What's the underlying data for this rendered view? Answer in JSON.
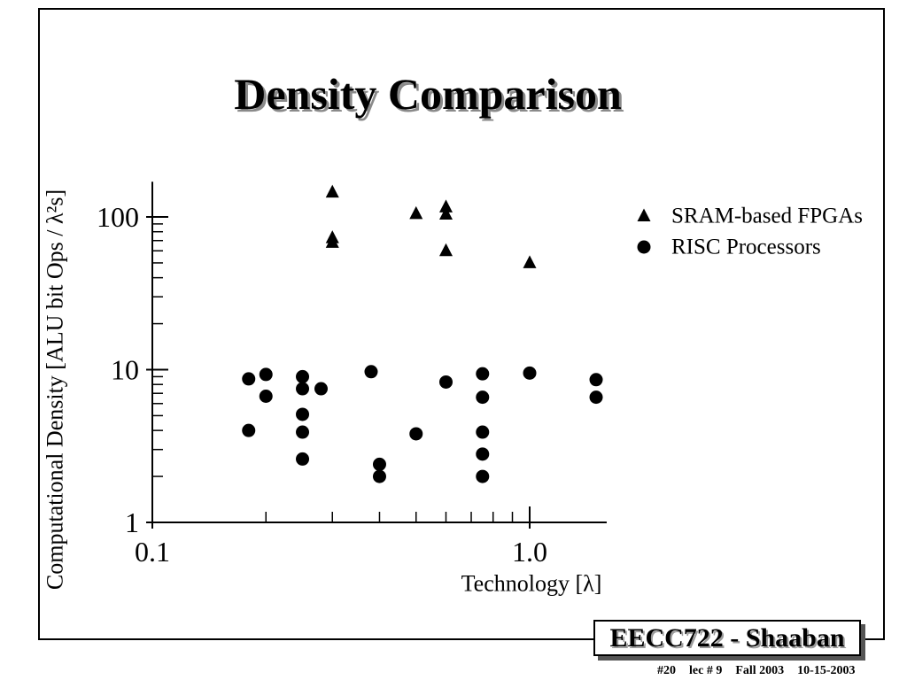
{
  "chart_data": {
    "type": "scatter",
    "title": "Density Comparison",
    "xlabel": "Technology [λ]",
    "ylabel": "Computational Density [ALU bit Ops / λ²s]",
    "x_scale": "log",
    "y_scale": "log",
    "xlim": [
      0.1,
      1.6
    ],
    "ylim": [
      1,
      170
    ],
    "x_ticks": [
      {
        "value": 0.1,
        "label": "0.1"
      },
      {
        "value": 1.0,
        "label": "1.0"
      }
    ],
    "y_ticks": [
      {
        "value": 1,
        "label": "1"
      },
      {
        "value": 10,
        "label": "10"
      },
      {
        "value": 100,
        "label": "100"
      }
    ],
    "grid": false,
    "legend_position": "top-right",
    "series": [
      {
        "name": "SRAM-based FPGAs",
        "marker": "triangle",
        "color": "#000000",
        "points": [
          [
            0.3,
            145
          ],
          [
            0.3,
            73
          ],
          [
            0.3,
            68
          ],
          [
            0.5,
            105
          ],
          [
            0.6,
            116
          ],
          [
            0.6,
            104
          ],
          [
            0.6,
            60
          ],
          [
            1.0,
            50
          ]
        ]
      },
      {
        "name": "RISC Processors",
        "marker": "circle",
        "color": "#000000",
        "points": [
          [
            0.18,
            8.7
          ],
          [
            0.18,
            4.0
          ],
          [
            0.2,
            9.3
          ],
          [
            0.2,
            6.7
          ],
          [
            0.25,
            9.0
          ],
          [
            0.25,
            7.5
          ],
          [
            0.25,
            5.1
          ],
          [
            0.25,
            3.9
          ],
          [
            0.25,
            2.6
          ],
          [
            0.28,
            7.5
          ],
          [
            0.38,
            9.7
          ],
          [
            0.4,
            2.4
          ],
          [
            0.4,
            2.0
          ],
          [
            0.5,
            3.8
          ],
          [
            0.6,
            8.3
          ],
          [
            0.75,
            9.4
          ],
          [
            0.75,
            6.6
          ],
          [
            0.75,
            3.9
          ],
          [
            0.75,
            2.8
          ],
          [
            0.75,
            2.0
          ],
          [
            1.0,
            9.5
          ],
          [
            1.5,
            8.6
          ],
          [
            1.5,
            6.6
          ]
        ]
      }
    ]
  },
  "footer": {
    "course_label": "EECC722 - Shaaban",
    "slide_number": "#20",
    "lecture": "lec # 9",
    "term": "Fall 2003",
    "date": "10-15-2003"
  }
}
